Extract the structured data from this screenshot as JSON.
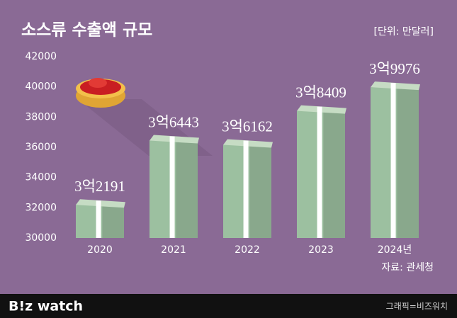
{
  "chart_data": {
    "type": "bar",
    "title": "소스류 수출액 규모",
    "unit_label": "[단위: 만달러]",
    "categories": [
      "2020",
      "2021",
      "2022",
      "2023",
      "2024년"
    ],
    "values": [
      32191,
      36443,
      36162,
      38409,
      39976
    ],
    "value_labels": [
      "3억2191",
      "3억6443",
      "3억6162",
      "3억8409",
      "3억9976"
    ],
    "color": "#9cc0a0",
    "ylim": [
      30000,
      42000
    ],
    "yticks": [
      30000,
      32000,
      34000,
      36000,
      38000,
      40000,
      42000
    ],
    "grid": false,
    "source": "자료: 관세청"
  },
  "footer": {
    "brand": "B!z watch",
    "credit": "그래픽=비즈워치"
  }
}
